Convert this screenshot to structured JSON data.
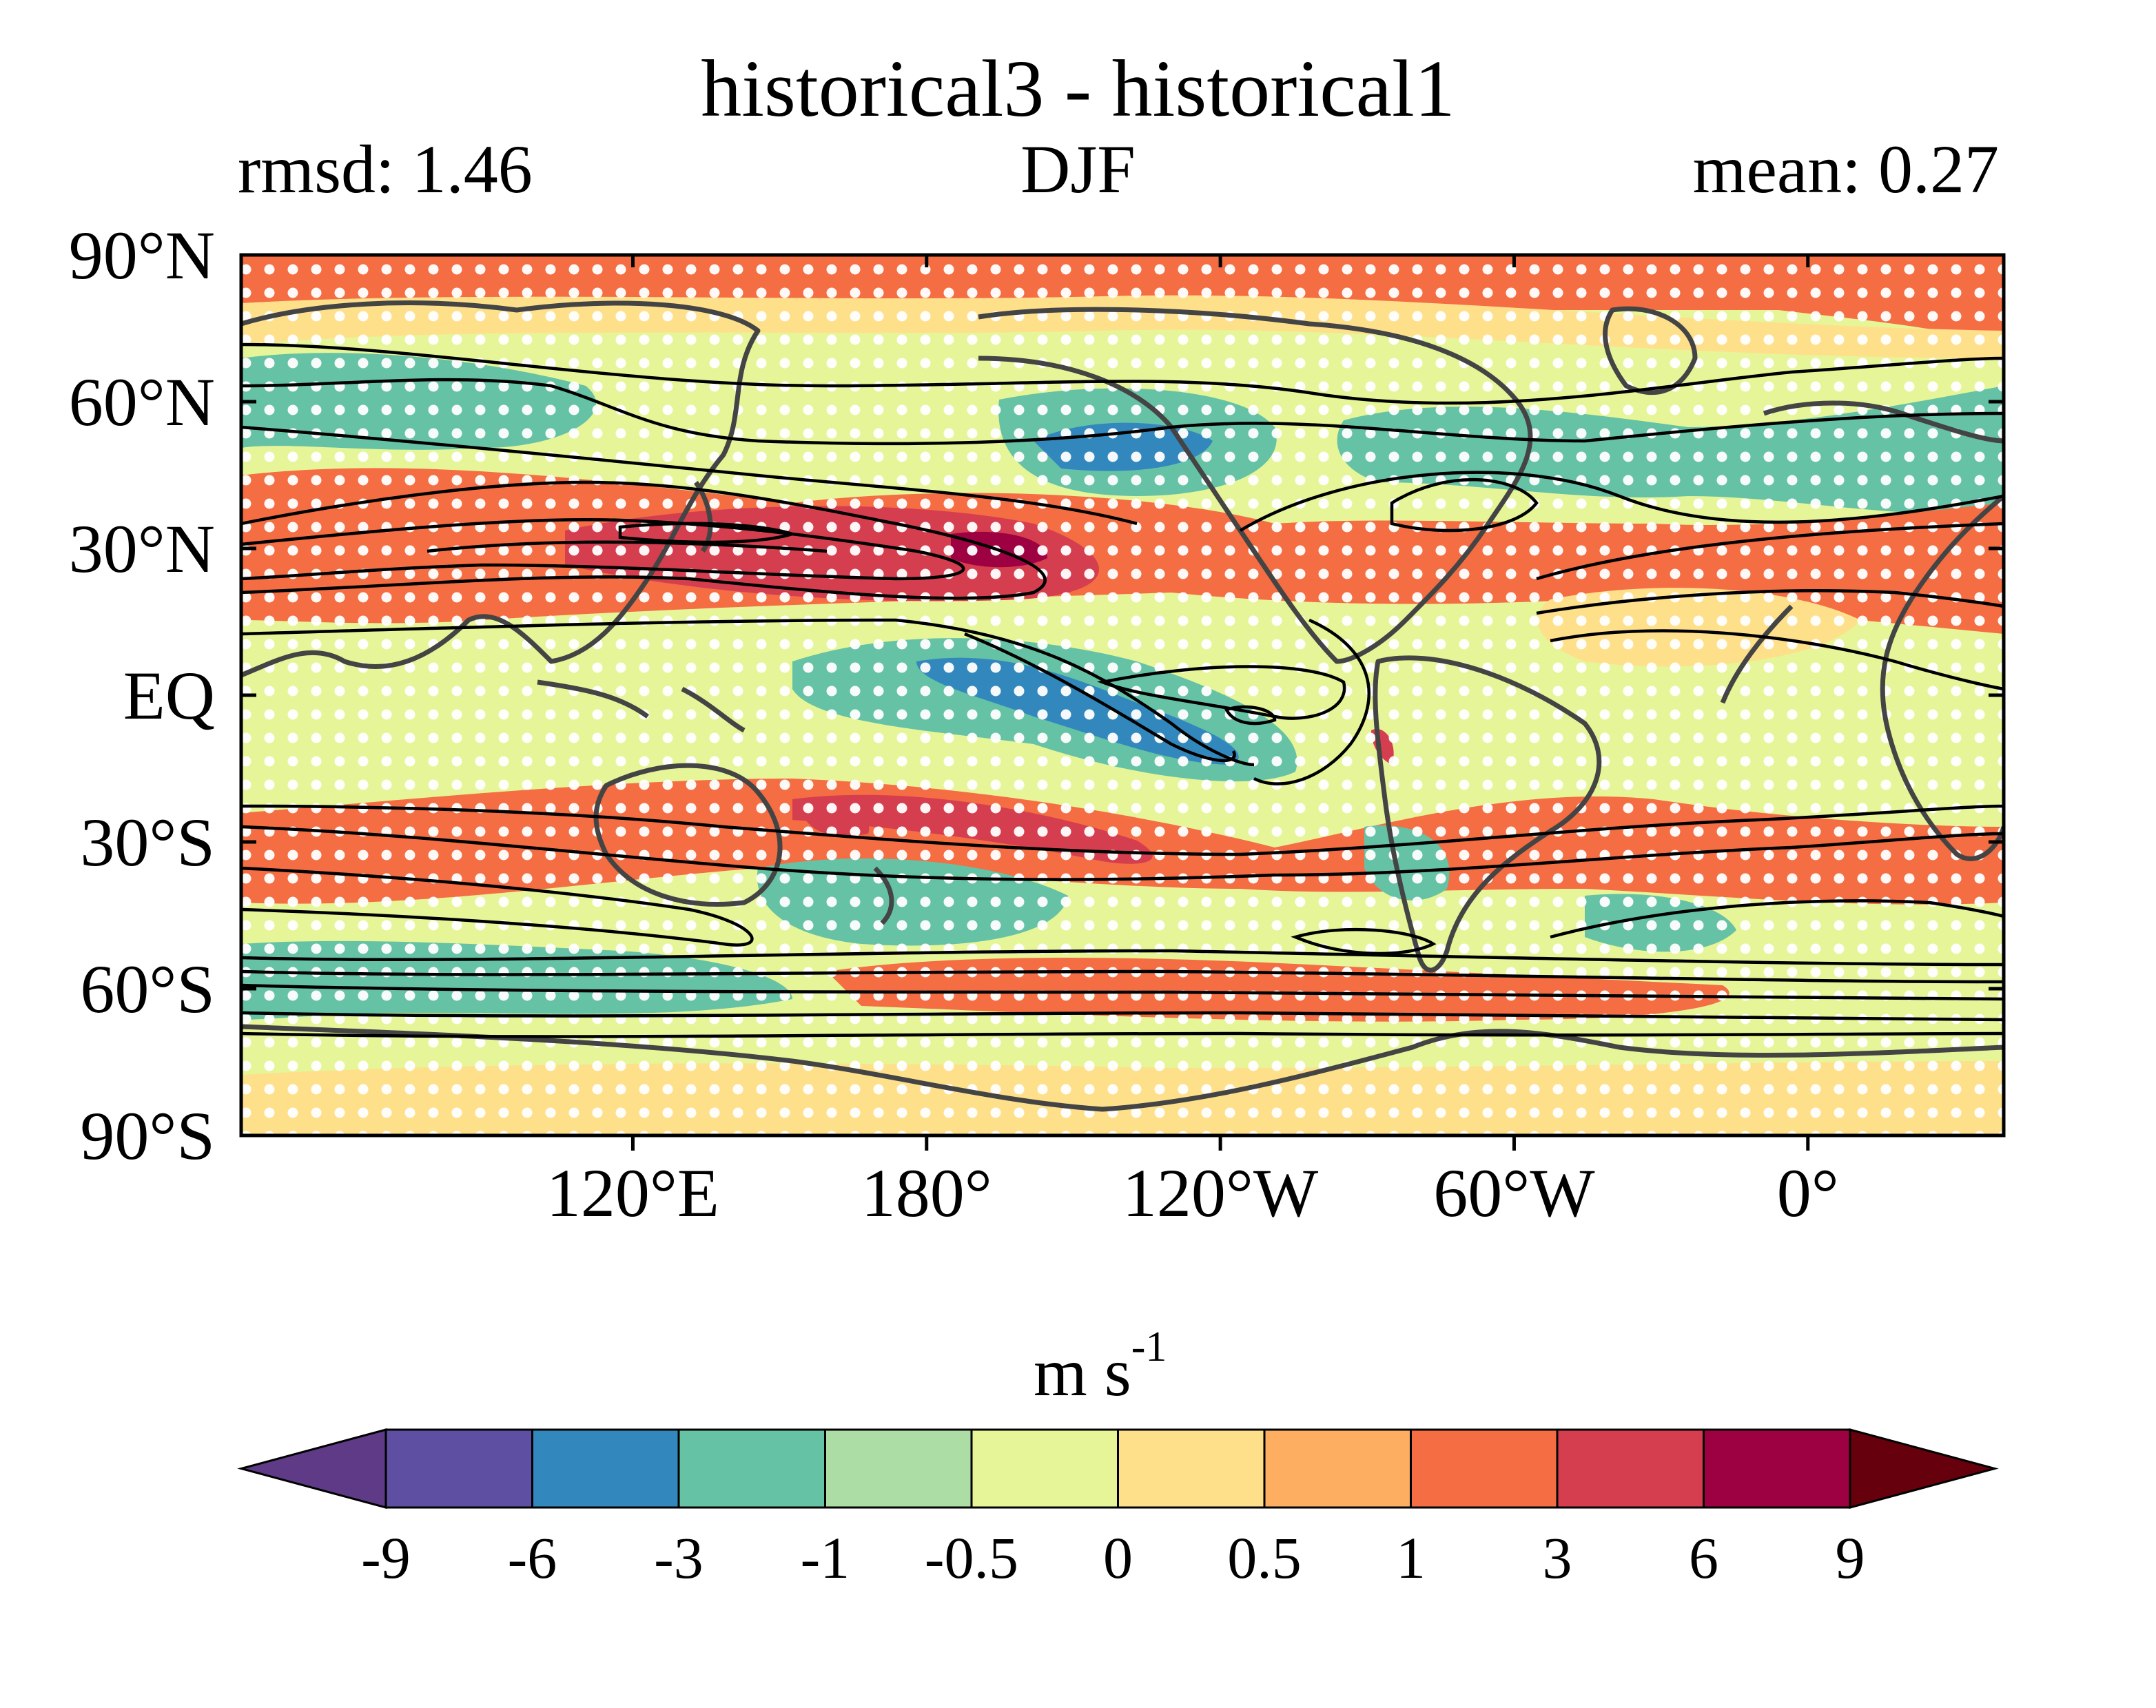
{
  "title": "historical3 - historical1",
  "rmsd_label": "rmsd: 1.46",
  "season": "DJF",
  "mean_label": "mean: 0.27",
  "map": {
    "projection": "equirectangular",
    "lon_range": [
      40,
      400
    ],
    "lat_range": [
      -90,
      90
    ],
    "y_ticks": [
      {
        "lat": 90,
        "label": "90°N"
      },
      {
        "lat": 60,
        "label": "60°N"
      },
      {
        "lat": 30,
        "label": "30°N"
      },
      {
        "lat": 0,
        "label": "EQ"
      },
      {
        "lat": -30,
        "label": "30°S"
      },
      {
        "lat": -60,
        "label": "60°S"
      },
      {
        "lat": -90,
        "label": "90°S"
      }
    ],
    "x_ticks": [
      {
        "lon": 120,
        "label": "120°E"
      },
      {
        "lon": 180,
        "label": "180°"
      },
      {
        "lon": 240,
        "label": "120°W"
      },
      {
        "lon": 300,
        "label": "60°W"
      },
      {
        "lon": 360,
        "label": "0°"
      }
    ],
    "stippling": "white dots mark significant differences",
    "contours": "black lines show climatological zonal wind"
  },
  "colorbar": {
    "unit_base": "m s",
    "unit_exp": "-1",
    "levels": [
      "-9",
      "-6",
      "-3",
      "-1",
      "-0.5",
      "0",
      "0.5",
      "1",
      "3",
      "6",
      "9"
    ],
    "colors": [
      "#5e3a87",
      "#5e4fa2",
      "#3288bd",
      "#66c2a5",
      "#abdda4",
      "#e6f598",
      "#fee08b",
      "#fdae61",
      "#f46d43",
      "#d53e4f",
      "#9e0142",
      "#67000d"
    ]
  },
  "palette": {
    "land_outline": "#444444",
    "contour": "#000000",
    "stipple": "#ffffff"
  }
}
